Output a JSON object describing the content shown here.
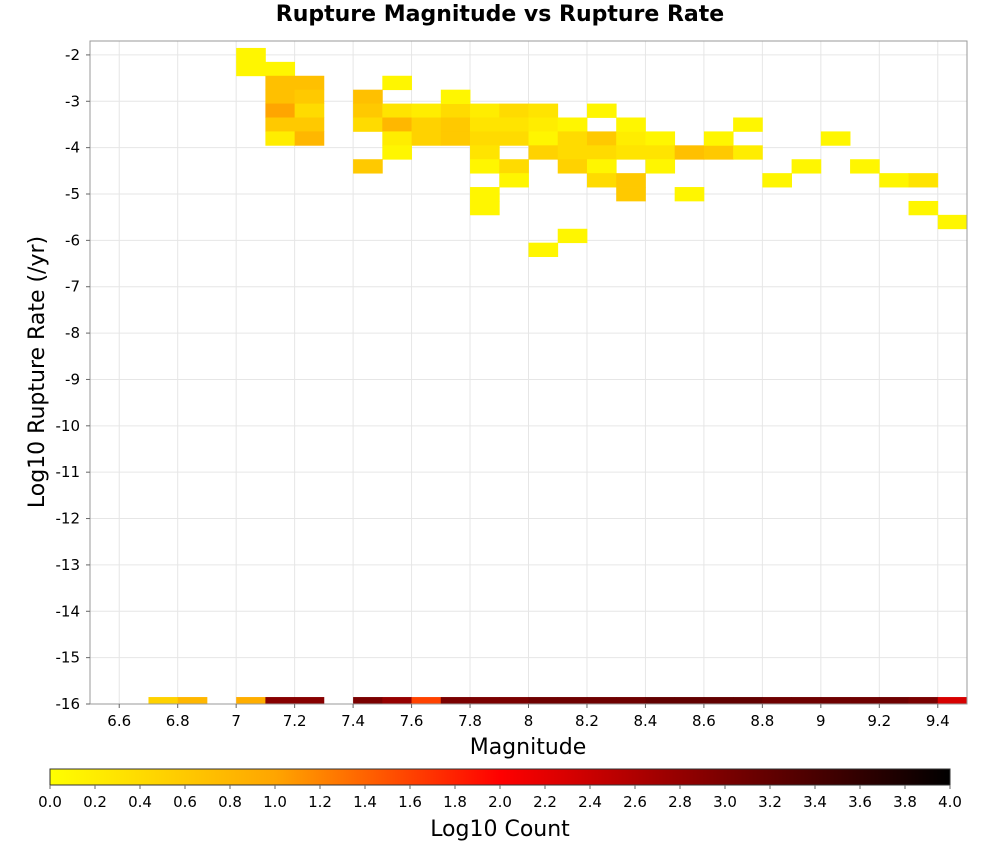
{
  "chart_data": {
    "type": "heatmap",
    "title": "Rupture Magnitude vs Rupture Rate",
    "xlabel": "Magnitude",
    "ylabel": "Log10 Rupture Rate (/yr)",
    "xlim": [
      6.5,
      9.5
    ],
    "ylim": [
      -16.0,
      -1.7
    ],
    "x_ticks": [
      "6.6",
      "6.8",
      "7",
      "7.2",
      "7.4",
      "7.6",
      "7.8",
      "8",
      "8.2",
      "8.4",
      "8.6",
      "8.8",
      "9",
      "9.2",
      "9.4"
    ],
    "y_ticks": [
      "-2",
      "-3",
      "-4",
      "-5",
      "-6",
      "-7",
      "-8",
      "-9",
      "-10",
      "-11",
      "-12",
      "-13",
      "-14",
      "-15",
      "-16"
    ],
    "grid": true,
    "bin_width": {
      "magnitude": 0.1,
      "log_rate": 0.3
    },
    "cells": [
      {
        "x": 7.0,
        "y": -2.0,
        "v": 0.1
      },
      {
        "x": 7.0,
        "y": -2.3,
        "v": 0.1
      },
      {
        "x": 7.1,
        "y": -2.3,
        "v": 0.1
      },
      {
        "x": 7.1,
        "y": -2.6,
        "v": 0.7
      },
      {
        "x": 7.2,
        "y": -2.6,
        "v": 0.7
      },
      {
        "x": 7.1,
        "y": -2.9,
        "v": 0.7
      },
      {
        "x": 7.2,
        "y": -2.9,
        "v": 0.6
      },
      {
        "x": 7.1,
        "y": -3.2,
        "v": 1.0
      },
      {
        "x": 7.2,
        "y": -3.2,
        "v": 0.4
      },
      {
        "x": 7.1,
        "y": -3.5,
        "v": 0.6
      },
      {
        "x": 7.2,
        "y": -3.5,
        "v": 0.6
      },
      {
        "x": 7.1,
        "y": -3.8,
        "v": 0.2
      },
      {
        "x": 7.2,
        "y": -3.8,
        "v": 0.8
      },
      {
        "x": 7.5,
        "y": -2.6,
        "v": 0.1
      },
      {
        "x": 7.4,
        "y": -2.9,
        "v": 0.7
      },
      {
        "x": 7.4,
        "y": -3.2,
        "v": 0.6
      },
      {
        "x": 7.5,
        "y": -3.2,
        "v": 0.3
      },
      {
        "x": 7.6,
        "y": -3.2,
        "v": 0.2
      },
      {
        "x": 7.7,
        "y": -3.2,
        "v": 0.4
      },
      {
        "x": 7.4,
        "y": -3.5,
        "v": 0.4
      },
      {
        "x": 7.5,
        "y": -3.5,
        "v": 0.8
      },
      {
        "x": 7.6,
        "y": -3.5,
        "v": 0.5
      },
      {
        "x": 7.7,
        "y": -3.5,
        "v": 0.6
      },
      {
        "x": 7.5,
        "y": -3.8,
        "v": 0.2
      },
      {
        "x": 7.6,
        "y": -3.8,
        "v": 0.5
      },
      {
        "x": 7.7,
        "y": -3.8,
        "v": 0.6
      },
      {
        "x": 7.5,
        "y": -4.1,
        "v": 0.1
      },
      {
        "x": 7.4,
        "y": -4.4,
        "v": 0.6
      },
      {
        "x": 7.7,
        "y": -2.9,
        "v": 0.1
      },
      {
        "x": 7.8,
        "y": -3.2,
        "v": 0.2
      },
      {
        "x": 7.9,
        "y": -3.2,
        "v": 0.4
      },
      {
        "x": 8.0,
        "y": -3.2,
        "v": 0.3
      },
      {
        "x": 7.8,
        "y": -3.5,
        "v": 0.3
      },
      {
        "x": 7.9,
        "y": -3.5,
        "v": 0.3
      },
      {
        "x": 8.0,
        "y": -3.5,
        "v": 0.2
      },
      {
        "x": 8.1,
        "y": -3.5,
        "v": 0.1
      },
      {
        "x": 7.8,
        "y": -3.8,
        "v": 0.4
      },
      {
        "x": 7.9,
        "y": -3.8,
        "v": 0.4
      },
      {
        "x": 8.0,
        "y": -3.8,
        "v": 0.1
      },
      {
        "x": 8.1,
        "y": -3.8,
        "v": 0.4
      },
      {
        "x": 7.8,
        "y": -4.1,
        "v": 0.3
      },
      {
        "x": 8.0,
        "y": -4.1,
        "v": 0.5
      },
      {
        "x": 8.1,
        "y": -4.1,
        "v": 0.4
      },
      {
        "x": 7.8,
        "y": -4.4,
        "v": 0.1
      },
      {
        "x": 7.9,
        "y": -4.4,
        "v": 0.4
      },
      {
        "x": 8.1,
        "y": -4.4,
        "v": 0.5
      },
      {
        "x": 7.9,
        "y": -4.7,
        "v": 0.1
      },
      {
        "x": 7.8,
        "y": -5.0,
        "v": 0.1
      },
      {
        "x": 7.8,
        "y": -5.3,
        "v": 0.1
      },
      {
        "x": 8.0,
        "y": -6.2,
        "v": 0.1
      },
      {
        "x": 8.1,
        "y": -5.9,
        "v": 0.1
      },
      {
        "x": 8.2,
        "y": -3.2,
        "v": 0.1
      },
      {
        "x": 8.2,
        "y": -3.8,
        "v": 0.6
      },
      {
        "x": 8.3,
        "y": -3.8,
        "v": 0.2
      },
      {
        "x": 8.4,
        "y": -3.8,
        "v": 0.1
      },
      {
        "x": 8.3,
        "y": -3.5,
        "v": 0.1
      },
      {
        "x": 8.2,
        "y": -4.1,
        "v": 0.4
      },
      {
        "x": 8.3,
        "y": -4.1,
        "v": 0.3
      },
      {
        "x": 8.4,
        "y": -4.1,
        "v": 0.3
      },
      {
        "x": 8.2,
        "y": -4.4,
        "v": 0.1
      },
      {
        "x": 8.4,
        "y": -4.4,
        "v": 0.1
      },
      {
        "x": 8.2,
        "y": -4.7,
        "v": 0.4
      },
      {
        "x": 8.3,
        "y": -4.7,
        "v": 0.6
      },
      {
        "x": 8.3,
        "y": -5.0,
        "v": 0.6
      },
      {
        "x": 8.5,
        "y": -4.1,
        "v": 0.7
      },
      {
        "x": 8.6,
        "y": -4.1,
        "v": 0.6
      },
      {
        "x": 8.7,
        "y": -4.1,
        "v": 0.2
      },
      {
        "x": 8.6,
        "y": -3.8,
        "v": 0.1
      },
      {
        "x": 8.7,
        "y": -3.5,
        "v": 0.1
      },
      {
        "x": 8.5,
        "y": -5.0,
        "v": 0.1
      },
      {
        "x": 8.8,
        "y": -4.7,
        "v": 0.1
      },
      {
        "x": 8.9,
        "y": -4.4,
        "v": 0.1
      },
      {
        "x": 9.0,
        "y": -3.8,
        "v": 0.1
      },
      {
        "x": 9.1,
        "y": -4.4,
        "v": 0.1
      },
      {
        "x": 9.2,
        "y": -4.7,
        "v": 0.1
      },
      {
        "x": 9.3,
        "y": -4.7,
        "v": 0.3
      },
      {
        "x": 9.3,
        "y": -5.3,
        "v": 0.1
      },
      {
        "x": 9.4,
        "y": -5.6,
        "v": 0.1
      },
      {
        "x": 6.7,
        "y": -16.0,
        "v": 0.5
      },
      {
        "x": 6.8,
        "y": -16.0,
        "v": 0.8
      },
      {
        "x": 7.0,
        "y": -16.0,
        "v": 0.9
      },
      {
        "x": 7.1,
        "y": -16.0,
        "v": 2.9
      },
      {
        "x": 7.2,
        "y": -16.0,
        "v": 2.9
      },
      {
        "x": 7.4,
        "y": -16.0,
        "v": 3.0
      },
      {
        "x": 7.5,
        "y": -16.0,
        "v": 2.8
      },
      {
        "x": 7.6,
        "y": -16.0,
        "v": 1.6
      },
      {
        "x": 7.7,
        "y": -16.0,
        "v": 3.0
      },
      {
        "x": 7.8,
        "y": -16.0,
        "v": 3.0
      },
      {
        "x": 7.9,
        "y": -16.0,
        "v": 3.0
      },
      {
        "x": 8.0,
        "y": -16.0,
        "v": 3.1
      },
      {
        "x": 8.1,
        "y": -16.0,
        "v": 3.1
      },
      {
        "x": 8.2,
        "y": -16.0,
        "v": 3.1
      },
      {
        "x": 8.3,
        "y": -16.0,
        "v": 3.1
      },
      {
        "x": 8.4,
        "y": -16.0,
        "v": 3.2
      },
      {
        "x": 8.5,
        "y": -16.0,
        "v": 3.2
      },
      {
        "x": 8.6,
        "y": -16.0,
        "v": 3.2
      },
      {
        "x": 8.7,
        "y": -16.0,
        "v": 3.2
      },
      {
        "x": 8.8,
        "y": -16.0,
        "v": 3.1
      },
      {
        "x": 8.9,
        "y": -16.0,
        "v": 3.1
      },
      {
        "x": 9.0,
        "y": -16.0,
        "v": 3.1
      },
      {
        "x": 9.1,
        "y": -16.0,
        "v": 3.1
      },
      {
        "x": 9.2,
        "y": -16.0,
        "v": 3.1
      },
      {
        "x": 9.3,
        "y": -16.0,
        "v": 3.0
      },
      {
        "x": 9.4,
        "y": -16.0,
        "v": 2.3
      }
    ],
    "colorbar": {
      "label": "Log10 Count",
      "min": 0.0,
      "max": 4.0,
      "ticks": [
        "0.0",
        "0.2",
        "0.4",
        "0.6",
        "0.8",
        "1.0",
        "1.2",
        "1.4",
        "1.6",
        "1.8",
        "2.0",
        "2.2",
        "2.4",
        "2.6",
        "2.8",
        "3.0",
        "3.2",
        "3.4",
        "3.6",
        "3.8",
        "4.0"
      ],
      "stops": [
        {
          "v": 0.0,
          "color": "#ffff00"
        },
        {
          "v": 1.0,
          "color": "#ffa500"
        },
        {
          "v": 2.0,
          "color": "#ff0000"
        },
        {
          "v": 3.0,
          "color": "#7a0000"
        },
        {
          "v": 4.0,
          "color": "#000000"
        }
      ]
    }
  }
}
